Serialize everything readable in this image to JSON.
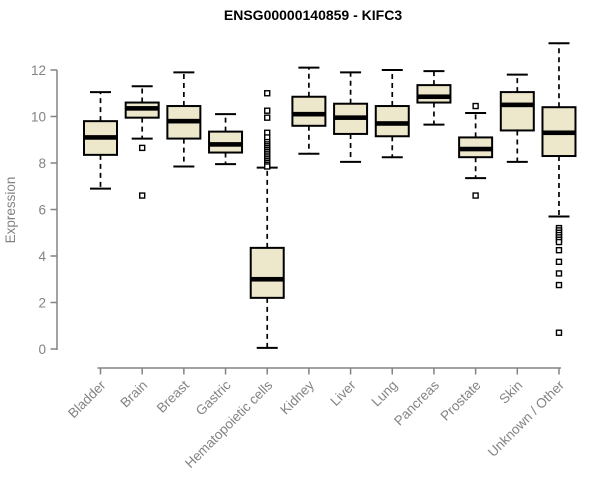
{
  "title": "ENSG00000140859 - KIFC3",
  "colors": {
    "box_fill": "#EDE7CB",
    "box_stroke": "#000000",
    "median": "#000000",
    "whisker": "#000000",
    "outlier": "#000000",
    "axis": "#838383",
    "title": "#000000",
    "background": "#FFFFFF"
  },
  "chart_data": {
    "type": "boxplot",
    "title": "ENSG00000140859 - KIFC3",
    "xlabel": "",
    "ylabel": "Expression",
    "ylim": [
      0,
      13.2
    ],
    "yticks": [
      0,
      2,
      4,
      6,
      8,
      10,
      12
    ],
    "grid": false,
    "legend": false,
    "categories": [
      "Bladder",
      "Brain",
      "Breast",
      "Gastric",
      "Hematopoietic cells",
      "Kidney",
      "Liver",
      "Lung",
      "Pancreas",
      "Prostate",
      "Skin",
      "Unknown / Other"
    ],
    "series": [
      {
        "label": "Bladder",
        "low": 6.9,
        "q1": 8.35,
        "median": 9.1,
        "q3": 9.8,
        "high": 11.05,
        "outliers": []
      },
      {
        "label": "Brain",
        "low": 9.05,
        "q1": 9.95,
        "median": 10.35,
        "q3": 10.6,
        "high": 11.3,
        "outliers": [
          8.65,
          6.6
        ]
      },
      {
        "label": "Breast",
        "low": 7.85,
        "q1": 9.05,
        "median": 9.8,
        "q3": 10.45,
        "high": 11.9,
        "outliers": []
      },
      {
        "label": "Gastric",
        "low": 7.95,
        "q1": 8.45,
        "median": 8.8,
        "q3": 9.35,
        "high": 10.1,
        "outliers": []
      },
      {
        "label": "Hematopoietic cells",
        "low": 0.05,
        "q1": 2.2,
        "median": 3.0,
        "q3": 4.35,
        "high": 7.8,
        "outliers": [
          11.0,
          10.25,
          9.95,
          9.3,
          9.1,
          8.9,
          8.8,
          8.72,
          8.64,
          8.56,
          8.48,
          8.4,
          8.32,
          8.24,
          8.16,
          8.08,
          8.0,
          7.92,
          7.85
        ]
      },
      {
        "label": "Kidney",
        "low": 8.4,
        "q1": 9.6,
        "median": 10.1,
        "q3": 10.85,
        "high": 12.1,
        "outliers": []
      },
      {
        "label": "Liver",
        "low": 8.05,
        "q1": 9.25,
        "median": 9.95,
        "q3": 10.55,
        "high": 11.9,
        "outliers": []
      },
      {
        "label": "Lung",
        "low": 8.25,
        "q1": 9.15,
        "median": 9.7,
        "q3": 10.45,
        "high": 12.0,
        "outliers": []
      },
      {
        "label": "Pancreas",
        "low": 9.65,
        "q1": 10.6,
        "median": 10.85,
        "q3": 11.35,
        "high": 11.95,
        "outliers": []
      },
      {
        "label": "Prostate",
        "low": 7.35,
        "q1": 8.25,
        "median": 8.6,
        "q3": 9.1,
        "high": 10.15,
        "outliers": [
          10.45,
          6.6
        ]
      },
      {
        "label": "Skin",
        "low": 8.05,
        "q1": 9.4,
        "median": 10.5,
        "q3": 11.05,
        "high": 11.8,
        "outliers": []
      },
      {
        "label": "Unknown / Other",
        "low": 5.7,
        "q1": 8.3,
        "median": 9.3,
        "q3": 10.4,
        "high": 13.15,
        "outliers": [
          5.2,
          5.1,
          5.0,
          4.9,
          4.8,
          4.7,
          4.6,
          4.25,
          3.75,
          3.25,
          2.75,
          0.7
        ]
      }
    ]
  }
}
